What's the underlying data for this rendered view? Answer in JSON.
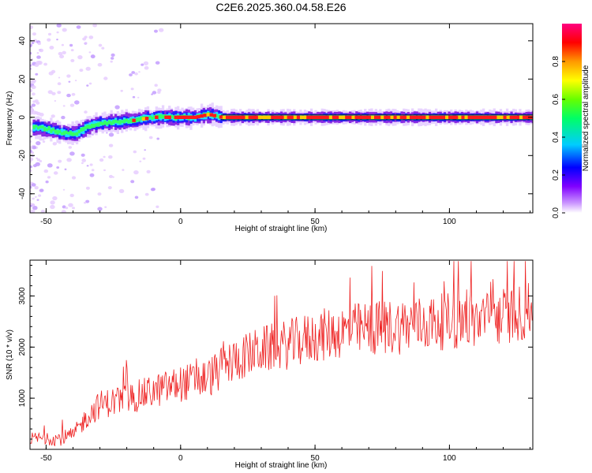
{
  "figure_title": "C2E6.2025.360.04.58.E26",
  "chart_data": [
    {
      "type": "heatmap",
      "title": "C2E6.2025.360.04.58.E26",
      "xlabel": "Height of straight line (km)",
      "ylabel": "Frequency (Hz)",
      "xlim": [
        -56,
        131
      ],
      "ylim": [
        -50,
        49
      ],
      "xticks": [
        -50,
        0,
        50,
        100
      ],
      "yticks": [
        -40,
        -20,
        0,
        20,
        40
      ],
      "band_center_hz": [
        [
          -55,
          -5
        ],
        [
          -50,
          -6
        ],
        [
          -45,
          -8
        ],
        [
          -40,
          -9
        ],
        [
          -35,
          -5
        ],
        [
          -30,
          -3
        ],
        [
          -25,
          -2.5
        ],
        [
          -20,
          -2
        ],
        [
          -15,
          -1
        ],
        [
          -10,
          0
        ],
        [
          0,
          0
        ],
        [
          5,
          0
        ],
        [
          10,
          1.5
        ],
        [
          15,
          0
        ],
        [
          131,
          0
        ]
      ],
      "colorbar": {
        "label": "Normalized spectral amplitude",
        "range": [
          0,
          1
        ],
        "ticks": [
          0.0,
          0.2,
          0.4,
          0.6,
          0.8
        ],
        "colormap": [
          "#ffffff",
          "#8000ff",
          "#0000ff",
          "#00ffff",
          "#00ff00",
          "#ffff00",
          "#ff8000",
          "#ff0000",
          "#ff0080"
        ]
      }
    },
    {
      "type": "line",
      "xlabel": "Height of straight line (km)",
      "ylabel": "SNR (10 * v/v)",
      "xlim": [
        -56,
        131
      ],
      "ylim": [
        0,
        3700
      ],
      "xticks": [
        -50,
        0,
        50,
        100
      ],
      "yticks": [
        1000,
        2000,
        3000
      ],
      "series": [
        {
          "name": "SNR",
          "color": "#ee2222",
          "trend": {
            "x": [
              -56,
              -45,
              -40,
              -35,
              -30,
              -20,
              -10,
              0,
              10,
              20,
              30,
              40,
              50,
              60,
              70,
              80,
              90,
              100,
              110,
              120,
              131
            ],
            "y": [
              200,
              200,
              250,
              600,
              850,
              950,
              1100,
              1250,
              1350,
              1700,
              1900,
              2000,
              2150,
              2250,
              2300,
              2350,
              2400,
              2450,
              2450,
              2550,
              2650
            ]
          },
          "spread": {
            "x": [
              -56,
              -40,
              -30,
              0,
              20,
              50,
              80,
              131
            ],
            "y": [
              150,
              200,
              350,
              450,
              550,
              650,
              700,
              700
            ]
          }
        }
      ]
    }
  ]
}
